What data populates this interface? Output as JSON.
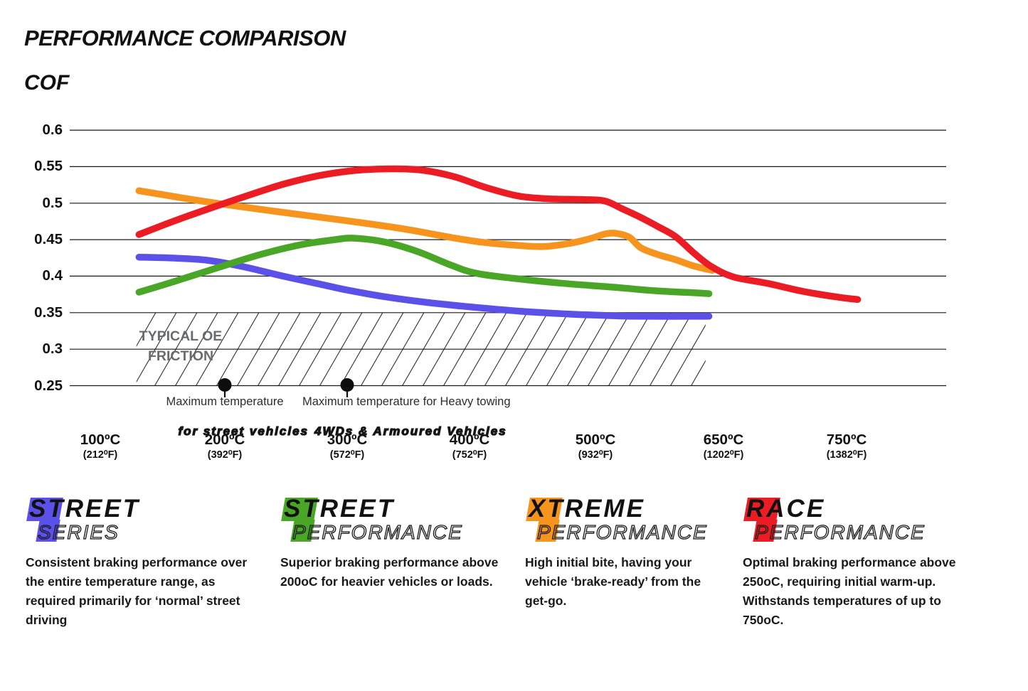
{
  "title": "PERFORMANCE COMPARISON",
  "chart_data": {
    "type": "line",
    "ylabel": "COF",
    "ylim": [
      0.25,
      0.6
    ],
    "grid": "horizontal",
    "y_tick_values": [
      0.6,
      0.55,
      0.5,
      0.45,
      0.4,
      0.35,
      0.3,
      0.25
    ],
    "y_tick_labels": [
      "0.6",
      "0.55",
      "0.5",
      "0.45",
      "0.4",
      "0.35",
      "0.3",
      "0.25"
    ],
    "x_ticks": [
      {
        "t": 100,
        "c": "100ºC",
        "f": "(212⁰F)"
      },
      {
        "t": 200,
        "c": "200ºC",
        "f": "(392⁰F)"
      },
      {
        "t": 300,
        "c": "300ºC",
        "f": "(572⁰F)"
      },
      {
        "t": 400,
        "c": "400ºC",
        "f": "(752⁰F)"
      },
      {
        "t": 500,
        "c": "500ºC",
        "f": "(932⁰F)"
      },
      {
        "t": 650,
        "c": "650ºC",
        "f": "(1202⁰F)"
      },
      {
        "t": 750,
        "c": "750ºC",
        "f": "(1382⁰F)"
      }
    ],
    "series": [
      {
        "name": "Street Series",
        "color": "#5b50e8",
        "points": [
          [
            131,
            0.426
          ],
          [
            155,
            0.425
          ],
          [
            185,
            0.422
          ],
          [
            215,
            0.413
          ],
          [
            245,
            0.401
          ],
          [
            275,
            0.39
          ],
          [
            300,
            0.381
          ],
          [
            330,
            0.372
          ],
          [
            365,
            0.364
          ],
          [
            400,
            0.358
          ],
          [
            440,
            0.352
          ],
          [
            480,
            0.348
          ],
          [
            515,
            0.346
          ],
          [
            550,
            0.345
          ],
          [
            633,
            0.345
          ]
        ]
      },
      {
        "name": "Street Performance",
        "color": "#4aa626",
        "points": [
          [
            131,
            0.378
          ],
          [
            160,
            0.393
          ],
          [
            195,
            0.412
          ],
          [
            230,
            0.43
          ],
          [
            262,
            0.443
          ],
          [
            290,
            0.45
          ],
          [
            305,
            0.452
          ],
          [
            330,
            0.447
          ],
          [
            357,
            0.434
          ],
          [
            385,
            0.415
          ],
          [
            405,
            0.404
          ],
          [
            435,
            0.397
          ],
          [
            475,
            0.39
          ],
          [
            520,
            0.385
          ],
          [
            570,
            0.38
          ],
          [
            620,
            0.377
          ],
          [
            633,
            0.376
          ]
        ]
      },
      {
        "name": "Xtreme Performance",
        "color": "#f7941d",
        "points": [
          [
            131,
            0.517
          ],
          [
            185,
            0.502
          ],
          [
            240,
            0.489
          ],
          [
            295,
            0.477
          ],
          [
            345,
            0.465
          ],
          [
            385,
            0.453
          ],
          [
            410,
            0.4465
          ],
          [
            435,
            0.4425
          ],
          [
            458,
            0.4405
          ],
          [
            478,
            0.4445
          ],
          [
            495,
            0.451
          ],
          [
            512,
            0.458
          ],
          [
            525,
            0.4585
          ],
          [
            540,
            0.453
          ],
          [
            553,
            0.439
          ],
          [
            572,
            0.43
          ],
          [
            594,
            0.4225
          ],
          [
            615,
            0.414
          ],
          [
            637,
            0.408
          ]
        ]
      },
      {
        "name": "Race Performance",
        "color": "#ec1c24",
        "points": [
          [
            131,
            0.457
          ],
          [
            160,
            0.476
          ],
          [
            190,
            0.494
          ],
          [
            218,
            0.51
          ],
          [
            248,
            0.526
          ],
          [
            278,
            0.538
          ],
          [
            308,
            0.545
          ],
          [
            338,
            0.547
          ],
          [
            362,
            0.545
          ],
          [
            388,
            0.536
          ],
          [
            412,
            0.522
          ],
          [
            438,
            0.51
          ],
          [
            462,
            0.506
          ],
          [
            490,
            0.505
          ],
          [
            511,
            0.503
          ],
          [
            530,
            0.493
          ],
          [
            552,
            0.481
          ],
          [
            573,
            0.468
          ],
          [
            594,
            0.454
          ],
          [
            615,
            0.432
          ],
          [
            636,
            0.413
          ],
          [
            658,
            0.399
          ],
          [
            686,
            0.39
          ],
          [
            715,
            0.379
          ],
          [
            744,
            0.371
          ],
          [
            759,
            0.368
          ]
        ]
      }
    ],
    "oe_band": {
      "lines": [
        "TYPICAL OE",
        "FRICTION"
      ],
      "cof_from": 0.25,
      "cof_to": 0.35,
      "t_from": 129,
      "t_to": 629
    },
    "annotations": [
      {
        "t": 200,
        "line1": "Maximum temperature",
        "line2": "for street vehicles"
      },
      {
        "t": 300,
        "line1": "Maximum temperature for Heavy towing",
        "line2": "4WDs & Armoured Vehicles"
      }
    ]
  },
  "legend": [
    {
      "line1": "STREET",
      "line2": "SERIES",
      "color": "#5b50e8",
      "description": "Consistent braking performance over the entire temperature range, as required primarily for ‘normal’ street driving"
    },
    {
      "line1": "STREET",
      "line2": "PERFORMANCE",
      "color": "#4aa626",
      "description": "Superior braking performance above 200oC for heavier vehicles or loads."
    },
    {
      "line1": "XTREME",
      "line2": "PERFORMANCE",
      "color": "#f7941d",
      "description": "High initial bite, having your vehicle ‘brake-ready’ from the get-go."
    },
    {
      "line1": "RACE",
      "line2": "PERFORMANCE",
      "color": "#ec1c24",
      "description": "Optimal braking performance above 250oC, requiring initial warm-up. Withstands temperatures of up to 750oC."
    }
  ]
}
